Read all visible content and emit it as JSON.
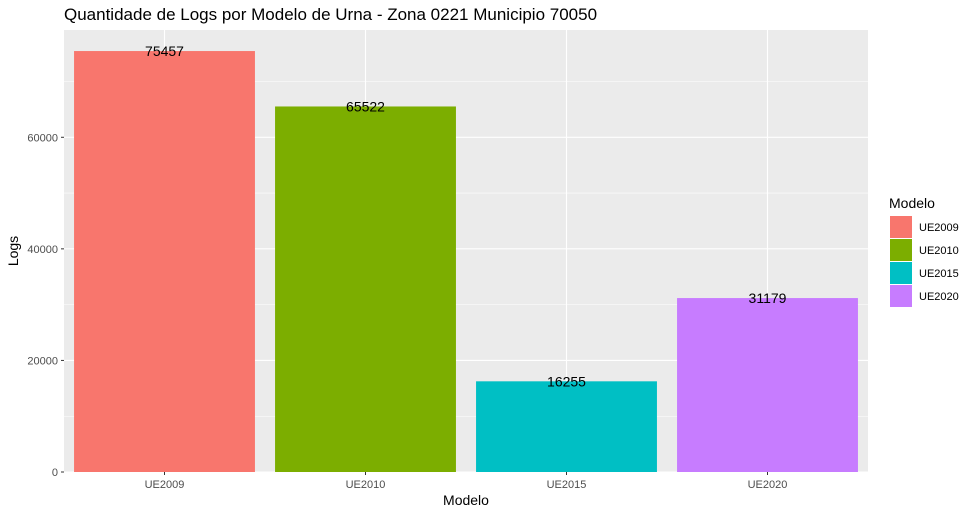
{
  "chart_data": {
    "type": "bar",
    "title": "Quantidade de Logs por Modelo de Urna - Zona 0221 Municipio 70050",
    "xlabel": "Modelo",
    "ylabel": "Logs",
    "categories": [
      "UE2009",
      "UE2010",
      "UE2015",
      "UE2020"
    ],
    "values": [
      75457,
      65522,
      16255,
      31179
    ],
    "data_labels": [
      "75457",
      "65522",
      "16255",
      "31179"
    ],
    "colors": [
      "#F8766D",
      "#7CAE00",
      "#00BFC4",
      "#C77CFF"
    ],
    "ylim": [
      0,
      79230
    ],
    "yticks": [
      0,
      20000,
      40000,
      60000
    ],
    "ytick_labels": [
      "0",
      "20000",
      "40000",
      "60000"
    ],
    "grid": true,
    "panel_background": "#EBEBEB",
    "grid_color": "#FFFFFF",
    "legend": {
      "title": "Modelo",
      "position": "right",
      "items": [
        "UE2009",
        "UE2010",
        "UE2015",
        "UE2020"
      ]
    }
  }
}
